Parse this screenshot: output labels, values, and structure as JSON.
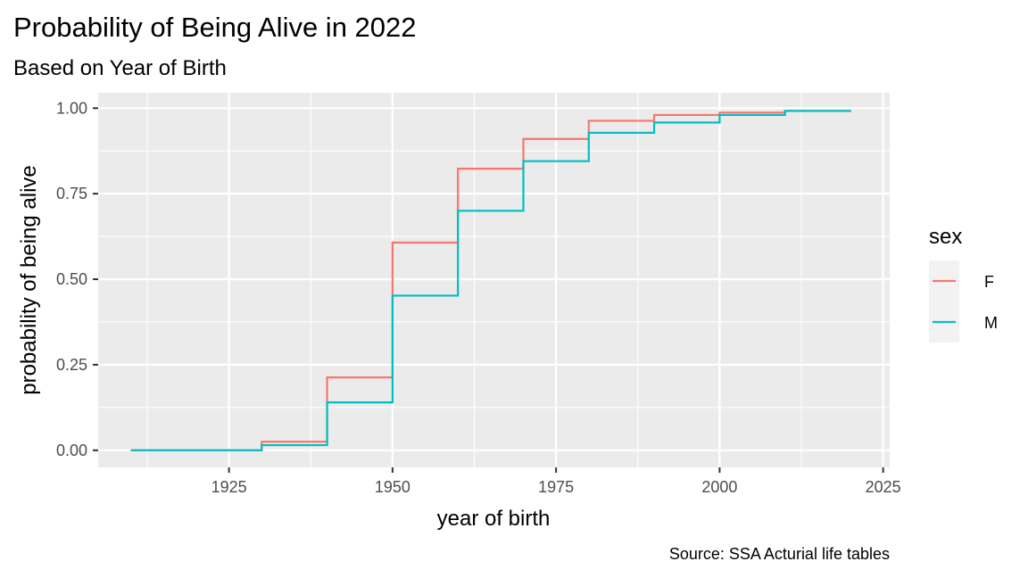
{
  "chart_data": {
    "type": "line",
    "step": true,
    "title": "Probability of Being Alive in 2022",
    "subtitle": "Based on Year of Birth",
    "xlabel": "year of birth",
    "ylabel": "probability of being alive",
    "caption": "Source: SSA Acturial life tables",
    "xlim": [
      1905,
      2026
    ],
    "ylim": [
      -0.05,
      1.045
    ],
    "x_ticks": [
      1925,
      1950,
      1975,
      2000,
      2025
    ],
    "x_tick_labels": [
      "1925",
      "1950",
      "1975",
      "2000",
      "2025"
    ],
    "y_ticks": [
      0,
      0.25,
      0.5,
      0.75,
      1.0
    ],
    "y_tick_labels": [
      "0.00",
      "0.25",
      "0.50",
      "0.75",
      "1.00"
    ],
    "grid": true,
    "legend": {
      "title": "sex",
      "position": "right"
    },
    "x": [
      1910,
      1920,
      1930,
      1940,
      1950,
      1960,
      1970,
      1980,
      1990,
      2000,
      2010,
      2020
    ],
    "series": [
      {
        "name": "F",
        "color": "#F8766D",
        "values": [
          0.0,
          0.0,
          0.025,
          0.213,
          0.607,
          0.823,
          0.91,
          0.963,
          0.98,
          0.987,
          0.992,
          0.993
        ]
      },
      {
        "name": "M",
        "color": "#00BFC4",
        "values": [
          0.0,
          0.0,
          0.015,
          0.14,
          0.452,
          0.7,
          0.845,
          0.928,
          0.958,
          0.98,
          0.992,
          0.993
        ]
      }
    ]
  }
}
